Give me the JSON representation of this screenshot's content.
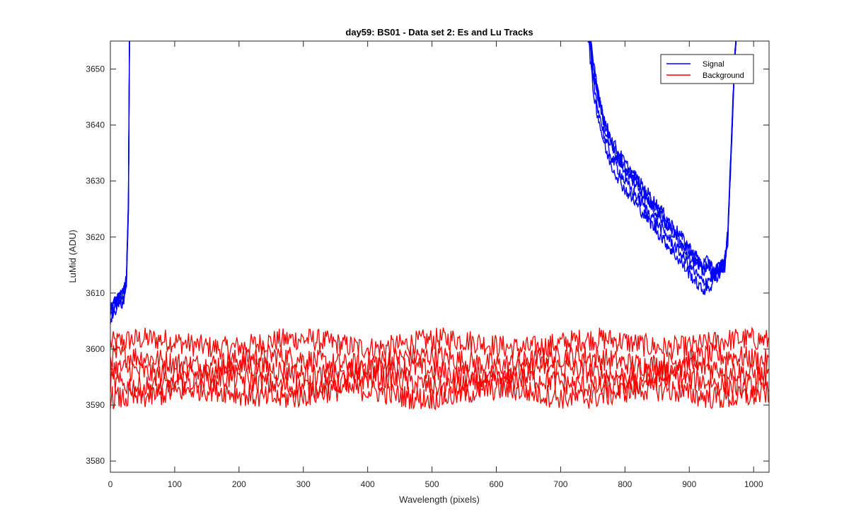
{
  "chart_data": {
    "type": "line",
    "title": "day59: BS01 - Data set 2: Es and Lu Tracks",
    "xlabel": "Wavelength (pixels)",
    "ylabel": "LuMid (ADU)",
    "xlim": [
      0,
      1024
    ],
    "ylim": [
      3578,
      3655
    ],
    "xticks": [
      0,
      100,
      200,
      300,
      400,
      500,
      600,
      700,
      800,
      900,
      1000
    ],
    "yticks": [
      3580,
      3590,
      3600,
      3610,
      3620,
      3630,
      3640,
      3650
    ],
    "grid": false,
    "legend_position": "top-right",
    "colors": {
      "signal": "#0000ff",
      "background": "#ff0000"
    },
    "series": [
      {
        "name": "Signal",
        "color": "#0000ff",
        "note_visible_tracks": 5,
        "x": [
          0,
          10,
          20,
          25,
          28,
          30,
          740,
          745,
          750,
          760,
          770,
          780,
          800,
          820,
          840,
          860,
          880,
          900,
          920,
          940,
          955,
          960,
          965,
          970,
          975
        ],
        "y": [
          3606,
          3608,
          3609,
          3612,
          3625,
          3660,
          3660,
          3655,
          3648,
          3642,
          3637,
          3634,
          3630,
          3627,
          3624,
          3621,
          3618,
          3615,
          3612,
          3613,
          3615,
          3620,
          3635,
          3650,
          3660
        ]
      },
      {
        "name": "Background",
        "color": "#ff0000",
        "note_visible_tracks": 5,
        "track_means": [
          3601,
          3598,
          3596,
          3594,
          3592
        ],
        "x": [
          0,
          100,
          200,
          300,
          400,
          500,
          600,
          700,
          800,
          900,
          1000,
          1024
        ],
        "y": [
          3601,
          3600,
          3601,
          3601,
          3601,
          3600,
          3601,
          3601,
          3601,
          3601,
          3601,
          3601
        ]
      }
    ]
  }
}
